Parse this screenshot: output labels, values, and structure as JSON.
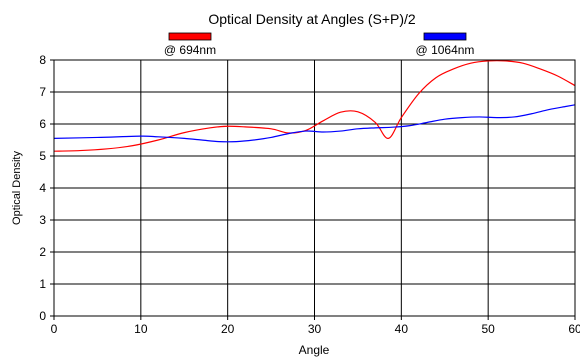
{
  "chart_data": {
    "type": "line",
    "title": "Optical Density at Angles (S+P)/2",
    "xlabel": "Angle",
    "ylabel": "Optical Density",
    "xlim": [
      0,
      60
    ],
    "ylim": [
      0,
      8
    ],
    "xticks": [
      0,
      10,
      20,
      30,
      40,
      50,
      60
    ],
    "yticks": [
      0,
      1,
      2,
      3,
      4,
      5,
      6,
      7,
      8
    ],
    "grid": true,
    "legend_position": "top",
    "series": [
      {
        "name": "@ 694nm",
        "color": "#ff0000",
        "x": [
          0,
          3,
          6,
          9,
          12,
          15,
          18,
          20,
          22,
          25,
          27,
          29,
          31,
          33,
          35,
          37,
          38.5,
          40,
          42,
          44,
          46,
          48,
          50,
          52,
          54,
          56,
          58,
          60
        ],
        "y": [
          5.15,
          5.17,
          5.22,
          5.32,
          5.5,
          5.73,
          5.88,
          5.93,
          5.91,
          5.85,
          5.72,
          5.8,
          6.1,
          6.37,
          6.38,
          6.05,
          5.55,
          6.2,
          6.95,
          7.45,
          7.72,
          7.9,
          7.97,
          7.97,
          7.9,
          7.72,
          7.5,
          7.2
        ]
      },
      {
        "name": "@ 1064nm",
        "color": "#0000ff",
        "x": [
          0,
          5,
          10,
          12,
          15,
          17,
          19,
          21,
          23,
          25,
          27,
          29,
          31,
          33,
          35,
          37,
          39,
          41,
          43,
          45,
          47,
          49,
          51,
          53,
          55,
          57,
          59,
          60
        ],
        "y": [
          5.55,
          5.58,
          5.62,
          5.6,
          5.55,
          5.5,
          5.45,
          5.45,
          5.5,
          5.58,
          5.7,
          5.78,
          5.75,
          5.78,
          5.85,
          5.88,
          5.9,
          5.95,
          6.05,
          6.15,
          6.2,
          6.22,
          6.2,
          6.22,
          6.32,
          6.45,
          6.55,
          6.6
        ]
      }
    ]
  }
}
